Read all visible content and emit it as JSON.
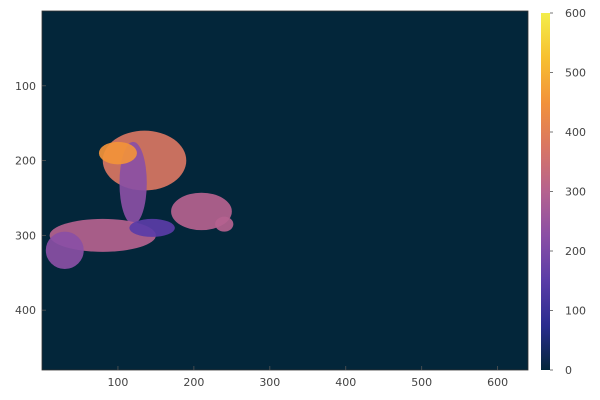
{
  "chart_data": {
    "type": "heatmap",
    "title": "",
    "xlabel": "",
    "ylabel": "",
    "x_range": [
      0,
      640
    ],
    "y_range": [
      0,
      480
    ],
    "y_inverted": true,
    "x_ticks": [
      {
        "value": 100,
        "label": "100"
      },
      {
        "value": 200,
        "label": "200"
      },
      {
        "value": 300,
        "label": "300"
      },
      {
        "value": 400,
        "label": "400"
      },
      {
        "value": 500,
        "label": "500"
      },
      {
        "value": 600,
        "label": "600"
      }
    ],
    "y_ticks": [
      {
        "value": 100,
        "label": "100"
      },
      {
        "value": 200,
        "label": "200"
      },
      {
        "value": 300,
        "label": "300"
      },
      {
        "value": 400,
        "label": "400"
      }
    ],
    "colorbar": {
      "range": [
        0,
        600
      ],
      "ticks": [
        {
          "value": 0,
          "label": "0"
        },
        {
          "value": 100,
          "label": "100"
        },
        {
          "value": 200,
          "label": "200"
        },
        {
          "value": 300,
          "label": "300"
        },
        {
          "value": 400,
          "label": "400"
        },
        {
          "value": 500,
          "label": "500"
        },
        {
          "value": 600,
          "label": "600"
        }
      ],
      "colors": [
        "#000c1d",
        "#140e36",
        "#3b0f6f",
        "#64179b",
        "#8b2a6f",
        "#b5367a",
        "#e55964",
        "#fb8761",
        "#fec287",
        "#fbfdbf"
      ],
      "palette_stops": [
        "#03263a",
        "#2a2c8f",
        "#5a3ca7",
        "#8a4fa5",
        "#b5628f",
        "#d97663",
        "#f2923a",
        "#f7c030",
        "#f3ee4b"
      ]
    },
    "background_value": 0,
    "region": {
      "description_values": "non-zero region with values ~150-450",
      "blobs": [
        {
          "cx": 135,
          "cy": 200,
          "rx": 55,
          "ry": 40,
          "value": 400
        },
        {
          "cx": 120,
          "cy": 230,
          "rx": 18,
          "ry": 55,
          "value": 200
        },
        {
          "cx": 210,
          "cy": 268,
          "rx": 40,
          "ry": 25,
          "value": 320
        },
        {
          "cx": 80,
          "cy": 300,
          "rx": 70,
          "ry": 22,
          "value": 280
        },
        {
          "cx": 30,
          "cy": 320,
          "rx": 25,
          "ry": 25,
          "value": 190
        },
        {
          "cx": 145,
          "cy": 290,
          "rx": 30,
          "ry": 12,
          "value": 170
        },
        {
          "cx": 100,
          "cy": 190,
          "rx": 25,
          "ry": 15,
          "value": 450
        },
        {
          "cx": 240,
          "cy": 285,
          "rx": 12,
          "ry": 10,
          "value": 300
        }
      ]
    }
  }
}
